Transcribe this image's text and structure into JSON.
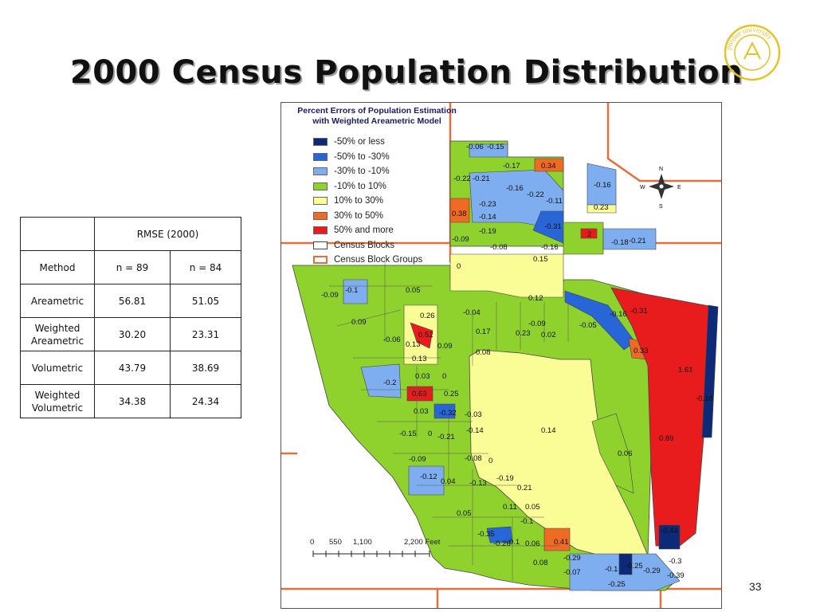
{
  "slide": {
    "title": "2000 Census Population Distribution",
    "page_number": "33",
    "logo_text": "purdue university"
  },
  "table": {
    "header_group": "RMSE (2000)",
    "header_method": "Method",
    "header_n89": "n = 89",
    "header_n84": "n = 84",
    "rows": [
      {
        "method": "Areametric",
        "n89": "56.81",
        "n84": "51.05"
      },
      {
        "method_line1": "Weighted",
        "method_line2": "Areametric",
        "n89": "30.20",
        "n84": "23.31"
      },
      {
        "method": "Volumetric",
        "n89": "43.79",
        "n84": "38.69"
      },
      {
        "method_line1": "Weighted",
        "method_line2": "Volumetric",
        "n89": "34.38",
        "n84": "24.34"
      }
    ]
  },
  "map": {
    "title_line1": "Percent Errors of Population Estimation",
    "title_line2": "with Weighted Areametric Model",
    "legend": [
      {
        "label": "-50% or less",
        "color": "#0d2a78"
      },
      {
        "label": "-50% to -30%",
        "color": "#2866d8"
      },
      {
        "label": "-30% to -10%",
        "color": "#7eaef0"
      },
      {
        "label": "-10% to 10%",
        "color": "#8fd22e"
      },
      {
        "label": "10% to 30%",
        "color": "#fafc96"
      },
      {
        "label": "30% to 50%",
        "color": "#ef6a22"
      },
      {
        "label": "50% and more",
        "color": "#e81c1c"
      },
      {
        "label": "Census Blocks",
        "color": "#ffffff"
      },
      {
        "label": "Census Block Groups",
        "color": "#ffffff"
      }
    ],
    "compass": {
      "n": "N",
      "s": "S",
      "e": "E",
      "w": "W"
    },
    "scale": {
      "t0": "0",
      "t1": "550",
      "t2": "1,100",
      "t3": "2,200 Feet"
    },
    "labels": [
      "-0.06",
      "-0.15",
      "-0.17",
      "0.34",
      "-0.22",
      "-0.21",
      "-0.16",
      "-0.16",
      "-0.22",
      "-0.11",
      "-0.23",
      "0.23",
      "0.38",
      "-0.14",
      "-0.31",
      "-0.19",
      "2",
      "-0.18",
      "-0.21",
      "-0.09",
      "-0.08",
      "-0.16",
      "0.15",
      "0",
      "-0.09",
      "-0.1",
      "0.05",
      "0.12",
      "-0.16",
      "-0.31",
      "0.26",
      "-0.04",
      "0.09",
      "-0.09",
      "-0.05",
      "0.17",
      "-0.06",
      "0.23",
      "0.02",
      "0.33",
      "0.52",
      "0.13",
      "0.09",
      "0.08",
      "0.13",
      "1.61",
      "0.03",
      "0",
      "-0.2",
      "0.63",
      "0.25",
      "-0.18",
      "0.03",
      "-0.32",
      "-0.03",
      "0.14",
      "-0.15",
      "0",
      "-0.21",
      "-0.14",
      "0.89",
      "0.06",
      "-0.09",
      "-0.08",
      "0",
      "-0.12",
      "0.04",
      "-0.13",
      "-0.19",
      "0.21",
      "0.05",
      "0.11",
      "0.05",
      "-0.1",
      "-0.35",
      "-0.44",
      "0.1",
      "-0.26",
      "0.06",
      "0.41",
      "-0.29",
      "-0.3",
      "0.08",
      "-0.07",
      "-0.1",
      "-0.25",
      "-0.29",
      "-0.39",
      "-0.25"
    ]
  }
}
